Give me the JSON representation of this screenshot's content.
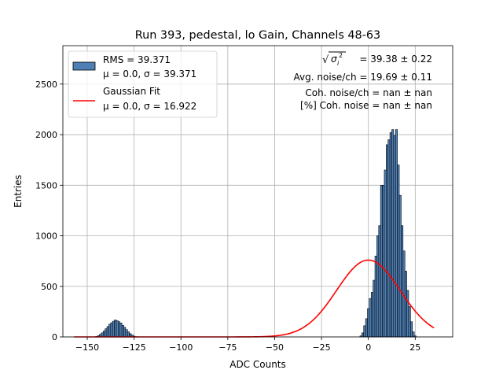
{
  "chart_data": {
    "type": "bar",
    "title": "Run 393, pedestal, lo Gain, Channels 48-63",
    "xlabel": "ADC Counts",
    "ylabel": "Entries",
    "xlim": [
      -163,
      45
    ],
    "ylim": [
      0,
      2880
    ],
    "xticks": [
      -150,
      -125,
      -100,
      -75,
      -50,
      -25,
      0,
      25
    ],
    "xtick_labels": [
      "−150",
      "−125",
      "−100",
      "−75",
      "−50",
      "−25",
      "0",
      "25"
    ],
    "yticks": [
      0,
      500,
      1000,
      1500,
      2000,
      2500
    ],
    "ytick_labels": [
      "0",
      "500",
      "1000",
      "1500",
      "2000",
      "2500"
    ],
    "grid": true,
    "legend_position": "top-left",
    "histogram": {
      "name": "RMS = 39.371",
      "stats": "μ = 0.0, σ = 39.371",
      "color": "#4e7fb5",
      "edge_color": "#000000",
      "bin_width": 1,
      "bins": [
        {
          "x": -145,
          "y": 5
        },
        {
          "x": -144,
          "y": 12
        },
        {
          "x": -143,
          "y": 25
        },
        {
          "x": -142,
          "y": 40
        },
        {
          "x": -141,
          "y": 58
        },
        {
          "x": -140,
          "y": 80
        },
        {
          "x": -139,
          "y": 102
        },
        {
          "x": -138,
          "y": 125
        },
        {
          "x": -137,
          "y": 140
        },
        {
          "x": -136,
          "y": 155
        },
        {
          "x": -135,
          "y": 168
        },
        {
          "x": -134,
          "y": 160
        },
        {
          "x": -133,
          "y": 150
        },
        {
          "x": -132,
          "y": 138
        },
        {
          "x": -131,
          "y": 115
        },
        {
          "x": -130,
          "y": 95
        },
        {
          "x": -129,
          "y": 72
        },
        {
          "x": -128,
          "y": 50
        },
        {
          "x": -127,
          "y": 32
        },
        {
          "x": -126,
          "y": 18
        },
        {
          "x": -125,
          "y": 8
        },
        {
          "x": -124,
          "y": 3
        },
        {
          "x": -4,
          "y": 10
        },
        {
          "x": -3,
          "y": 40
        },
        {
          "x": -2,
          "y": 110
        },
        {
          "x": -1,
          "y": 180
        },
        {
          "x": 0,
          "y": 280
        },
        {
          "x": 1,
          "y": 380
        },
        {
          "x": 2,
          "y": 440
        },
        {
          "x": 3,
          "y": 560
        },
        {
          "x": 4,
          "y": 800
        },
        {
          "x": 5,
          "y": 1000
        },
        {
          "x": 6,
          "y": 1100
        },
        {
          "x": 7,
          "y": 1500
        },
        {
          "x": 8,
          "y": 1500
        },
        {
          "x": 9,
          "y": 1650
        },
        {
          "x": 10,
          "y": 1900
        },
        {
          "x": 11,
          "y": 1950
        },
        {
          "x": 12,
          "y": 2020
        },
        {
          "x": 13,
          "y": 2050
        },
        {
          "x": 14,
          "y": 1990
        },
        {
          "x": 15,
          "y": 2050
        },
        {
          "x": 16,
          "y": 1700
        },
        {
          "x": 17,
          "y": 1400
        },
        {
          "x": 18,
          "y": 1100
        },
        {
          "x": 19,
          "y": 850
        },
        {
          "x": 20,
          "y": 650
        },
        {
          "x": 21,
          "y": 460
        },
        {
          "x": 22,
          "y": 300
        },
        {
          "x": 23,
          "y": 150
        },
        {
          "x": 24,
          "y": 50
        },
        {
          "x": 25,
          "y": 10
        }
      ]
    },
    "fit": {
      "name": "Gaussian Fit",
      "stats": "μ = 0.0, σ = 16.922",
      "color": "#ff0000",
      "mu": 0.0,
      "sigma": 16.922,
      "amplitude": 760,
      "x_range": [
        -157,
        35
      ]
    },
    "annotations": [
      {
        "radical": "√",
        "symbol": "σ",
        "sub": "i",
        "sup": "2",
        "text": " = 39.38 ± 0.22"
      },
      {
        "text": "Avg. noise/ch = 19.69 ± 0.11"
      },
      {
        "text": "Coh. noise/ch = nan ± nan"
      },
      {
        "text": "[%] Coh. noise = nan ± nan"
      }
    ]
  }
}
